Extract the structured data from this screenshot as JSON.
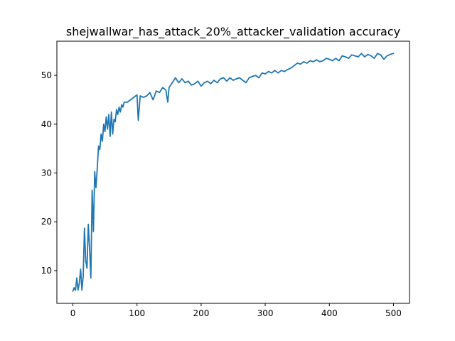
{
  "chart_data": {
    "type": "line",
    "title": "shejwallwar_has_attack_20%_attacker_validation accuracy",
    "xlabel": "",
    "ylabel": "",
    "xlim": [
      -25,
      525
    ],
    "ylim": [
      3.3,
      57.0
    ],
    "xticks": [
      0,
      100,
      200,
      300,
      400,
      500
    ],
    "yticks": [
      10,
      20,
      30,
      40,
      50
    ],
    "grid": false,
    "color": "#1f77b4",
    "series": [
      {
        "name": "validation accuracy",
        "x": [
          0,
          2,
          4,
          6,
          8,
          10,
          12,
          14,
          16,
          18,
          20,
          22,
          24,
          26,
          28,
          30,
          32,
          34,
          36,
          38,
          40,
          42,
          44,
          46,
          48,
          50,
          52,
          54,
          56,
          58,
          60,
          62,
          64,
          66,
          68,
          70,
          72,
          74,
          76,
          78,
          80,
          85,
          90,
          95,
          100,
          102,
          105,
          110,
          115,
          120,
          125,
          130,
          135,
          140,
          145,
          148,
          150,
          155,
          160,
          165,
          170,
          175,
          180,
          185,
          190,
          195,
          200,
          205,
          210,
          215,
          220,
          225,
          230,
          235,
          240,
          245,
          250,
          255,
          260,
          265,
          270,
          275,
          280,
          285,
          290,
          295,
          300,
          305,
          310,
          315,
          320,
          325,
          330,
          335,
          340,
          345,
          350,
          355,
          360,
          365,
          370,
          375,
          380,
          385,
          390,
          395,
          400,
          405,
          410,
          415,
          420,
          425,
          430,
          435,
          440,
          445,
          450,
          455,
          460,
          465,
          470,
          475,
          480,
          485,
          490,
          495,
          500
        ],
        "values": [
          5.8,
          6.5,
          6.0,
          8.5,
          6.0,
          7.5,
          10.3,
          6.0,
          8.8,
          18.7,
          12.0,
          10.5,
          19.5,
          14.5,
          8.5,
          26.5,
          18.0,
          30.3,
          27.0,
          31.0,
          35.5,
          34.8,
          38.0,
          36.5,
          40.0,
          38.5,
          41.5,
          39.0,
          42.0,
          37.5,
          42.5,
          38.0,
          41.0,
          40.5,
          43.0,
          42.0,
          43.5,
          42.5,
          44.0,
          43.5,
          44.5,
          44.5,
          45.0,
          45.5,
          46.0,
          40.8,
          45.8,
          45.5,
          45.8,
          46.5,
          45.0,
          46.8,
          46.5,
          47.5,
          47.0,
          44.5,
          47.5,
          48.5,
          49.5,
          48.5,
          49.3,
          48.5,
          48.8,
          48.0,
          48.3,
          48.8,
          47.8,
          48.5,
          48.8,
          48.3,
          49.0,
          48.5,
          49.3,
          49.5,
          48.8,
          49.5,
          49.0,
          49.3,
          49.5,
          49.0,
          48.5,
          49.5,
          49.8,
          50.0,
          49.5,
          50.5,
          50.3,
          50.8,
          50.5,
          51.0,
          50.5,
          51.0,
          50.8,
          51.2,
          51.5,
          52.0,
          52.5,
          52.3,
          52.8,
          52.5,
          53.0,
          52.8,
          53.2,
          52.8,
          53.0,
          53.5,
          53.3,
          53.0,
          53.5,
          53.0,
          54.0,
          53.8,
          53.5,
          54.2,
          54.0,
          53.8,
          54.5,
          53.8,
          54.3,
          54.0,
          53.5,
          54.5,
          54.2,
          53.3,
          54.0,
          54.3,
          54.5
        ]
      }
    ]
  }
}
